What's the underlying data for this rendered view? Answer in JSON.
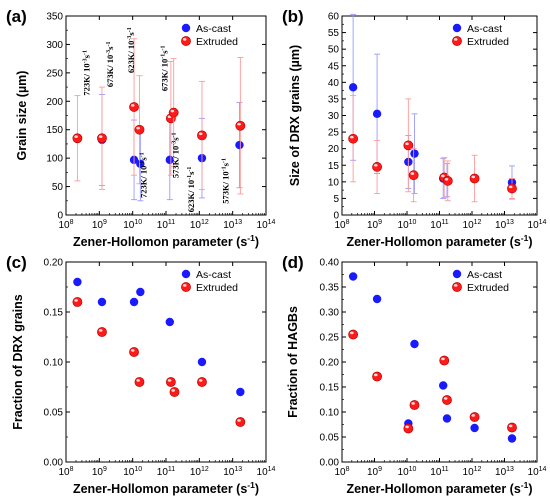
{
  "colors": {
    "ascast": "#1a1aff",
    "extruded": "#ff1a1a",
    "ascast_err": "#9a9aff",
    "extruded_err": "#ff9a9a",
    "axis": "#000000"
  },
  "chart_data": [
    {
      "panel": "(a)",
      "type": "scatter",
      "xlabel": "Zener-Hollomon parameter (s-1)",
      "ylabel": "Grain size (µm)",
      "xscale": "log",
      "xlim": [
        100000000.0,
        100000000000000.0
      ],
      "ylim": [
        0,
        350
      ],
      "xticks": [
        "10^8",
        "10^9",
        "10^10",
        "10^11",
        "10^12",
        "10^13",
        "10^14"
      ],
      "yticks": [
        0,
        50,
        100,
        150,
        200,
        250,
        300,
        350
      ],
      "legend": "top-right",
      "series": [
        {
          "name": "As-cast",
          "points": [
            {
              "x": 1200000000.0,
              "y": 132,
              "yerr": 80
            },
            {
              "x": 11000000000.0,
              "y": 97,
              "yerr": 70
            },
            {
              "x": 17000000000.0,
              "y": 90,
              "yerr": 65
            },
            {
              "x": 130000000000.0,
              "y": 97,
              "yerr": 70
            },
            {
              "x": 1200000000000.0,
              "y": 100,
              "yerr": 70
            },
            {
              "x": 16000000000000.0,
              "y": 123,
              "yerr": 75
            }
          ]
        },
        {
          "name": "Extruded",
          "points": [
            {
              "x": 220000000.0,
              "y": 135,
              "yerr": 75
            },
            {
              "x": 1200000000.0,
              "y": 135,
              "yerr": 90
            },
            {
              "x": 11000000000.0,
              "y": 190,
              "yerr": 120
            },
            {
              "x": 16000000000.0,
              "y": 150,
              "yerr": 95
            },
            {
              "x": 140000000000.0,
              "y": 170,
              "yerr": 100
            },
            {
              "x": 170000000000.0,
              "y": 180,
              "yerr": 95
            },
            {
              "x": 1200000000000.0,
              "y": 140,
              "yerr": 95
            },
            {
              "x": 17000000000000.0,
              "y": 157,
              "yerr": 120
            }
          ]
        }
      ],
      "annotations": [
        {
          "text": "723K/ 10-3s-1",
          "x": 500000000.0,
          "y": 250
        },
        {
          "text": "673K/ 10-3s-1",
          "x": 2600000000.0,
          "y": 265
        },
        {
          "text": "623K/ 10-3s-1",
          "x": 11000000000.0,
          "y": 290
        },
        {
          "text": "723K/ 10-1s-1",
          "x": 26000000000.0,
          "y": 70
        },
        {
          "text": "673K/ 10-1s-1",
          "x": 110000000000.0,
          "y": 258
        },
        {
          "text": "573K/ 10-3s-1",
          "x": 240000000000.0,
          "y": 105
        },
        {
          "text": "623K/ 10-1s-1",
          "x": 700000000000.0,
          "y": 45
        },
        {
          "text": "573K/ 10-1s-1",
          "x": 7500000000000.0,
          "y": 60
        }
      ]
    },
    {
      "panel": "(b)",
      "type": "scatter",
      "xlabel": "Zener-Hollomon parameter (s-1)",
      "ylabel": "Size of DRX grains (µm)",
      "xscale": "log",
      "xlim": [
        100000000.0,
        100000000000000.0
      ],
      "ylim": [
        0,
        60
      ],
      "xticks": [
        "10^8",
        "10^9",
        "10^10",
        "10^11",
        "10^12",
        "10^13",
        "10^14"
      ],
      "yticks": [
        0,
        5,
        10,
        15,
        20,
        25,
        30,
        35,
        40,
        45,
        50,
        55,
        60
      ],
      "legend": "top-right",
      "series": [
        {
          "name": "As-cast",
          "points": [
            {
              "x": 220000000.0,
              "y": 38.5,
              "yerr": 22
            },
            {
              "x": 1200000000.0,
              "y": 30.5,
              "yerr": 18
            },
            {
              "x": 11000000000.0,
              "y": 16,
              "yerr": 8
            },
            {
              "x": 17000000000.0,
              "y": 18.5,
              "yerr": 12
            },
            {
              "x": 130000000000.0,
              "y": 11,
              "yerr": 6
            },
            {
              "x": 170000000000.0,
              "y": 10.5,
              "yerr": 5
            },
            {
              "x": 17000000000000.0,
              "y": 9.8,
              "yerr": 5
            }
          ]
        },
        {
          "name": "Extruded",
          "points": [
            {
              "x": 220000000.0,
              "y": 23,
              "yerr": 13
            },
            {
              "x": 1200000000.0,
              "y": 14.5,
              "yerr": 8
            },
            {
              "x": 11000000000.0,
              "y": 21,
              "yerr": 14
            },
            {
              "x": 16000000000.0,
              "y": 12,
              "yerr": 8
            },
            {
              "x": 140000000000.0,
              "y": 11.3,
              "yerr": 6
            },
            {
              "x": 180000000000.0,
              "y": 10.3,
              "yerr": 6
            },
            {
              "x": 1200000000000.0,
              "y": 11,
              "yerr": 7
            },
            {
              "x": 17000000000000.0,
              "y": 8,
              "yerr": 3
            }
          ]
        }
      ]
    },
    {
      "panel": "(c)",
      "type": "scatter",
      "xlabel": "Zener-Hollomon parameter (s-1)",
      "ylabel": "Fraction of DRX grains",
      "xscale": "log",
      "xlim": [
        100000000.0,
        100000000000000.0
      ],
      "ylim": [
        0,
        0.2
      ],
      "xticks": [
        "10^8",
        "10^9",
        "10^10",
        "10^11",
        "10^12",
        "10^13",
        "10^14"
      ],
      "yticks": [
        "0.00",
        "0.05",
        "0.10",
        "0.15",
        "0.20"
      ],
      "legend": "top-right",
      "series": [
        {
          "name": "As-cast",
          "points": [
            {
              "x": 220000000.0,
              "y": 0.18
            },
            {
              "x": 1200000000.0,
              "y": 0.16
            },
            {
              "x": 11000000000.0,
              "y": 0.16
            },
            {
              "x": 17000000000.0,
              "y": 0.17
            },
            {
              "x": 130000000000.0,
              "y": 0.14
            },
            {
              "x": 1200000000000.0,
              "y": 0.1
            },
            {
              "x": 17000000000000.0,
              "y": 0.07
            }
          ]
        },
        {
          "name": "Extruded",
          "points": [
            {
              "x": 220000000.0,
              "y": 0.16
            },
            {
              "x": 1200000000.0,
              "y": 0.13
            },
            {
              "x": 11000000000.0,
              "y": 0.11
            },
            {
              "x": 16000000000.0,
              "y": 0.08
            },
            {
              "x": 140000000000.0,
              "y": 0.08
            },
            {
              "x": 180000000000.0,
              "y": 0.07
            },
            {
              "x": 1200000000000.0,
              "y": 0.08
            },
            {
              "x": 17000000000000.0,
              "y": 0.04
            }
          ]
        }
      ]
    },
    {
      "panel": "(d)",
      "type": "scatter",
      "xlabel": "Zener-Hollomon parameter (s-1)",
      "ylabel": "Fraction of HAGBs",
      "xscale": "log",
      "xlim": [
        100000000.0,
        100000000000000.0
      ],
      "ylim": [
        0,
        0.4
      ],
      "xticks": [
        "10^8",
        "10^9",
        "10^10",
        "10^11",
        "10^12",
        "10^13",
        "10^14"
      ],
      "yticks": [
        "0.00",
        "0.05",
        "0.10",
        "0.15",
        "0.20",
        "0.25",
        "0.30",
        "0.35",
        "0.40"
      ],
      "legend": "top-right",
      "series": [
        {
          "name": "As-cast",
          "points": [
            {
              "x": 220000000.0,
              "y": 0.371
            },
            {
              "x": 1200000000.0,
              "y": 0.326
            },
            {
              "x": 11000000000.0,
              "y": 0.077
            },
            {
              "x": 17000000000.0,
              "y": 0.236
            },
            {
              "x": 130000000000.0,
              "y": 0.153
            },
            {
              "x": 170000000000.0,
              "y": 0.087
            },
            {
              "x": 1200000000000.0,
              "y": 0.068
            },
            {
              "x": 17000000000000.0,
              "y": 0.047
            }
          ]
        },
        {
          "name": "Extruded",
          "points": [
            {
              "x": 220000000.0,
              "y": 0.255
            },
            {
              "x": 1200000000.0,
              "y": 0.171
            },
            {
              "x": 11000000000.0,
              "y": 0.067
            },
            {
              "x": 17000000000.0,
              "y": 0.114
            },
            {
              "x": 140000000000.0,
              "y": 0.203
            },
            {
              "x": 170000000000.0,
              "y": 0.124
            },
            {
              "x": 1200000000000.0,
              "y": 0.09
            },
            {
              "x": 17000000000000.0,
              "y": 0.069
            }
          ]
        }
      ]
    }
  ]
}
